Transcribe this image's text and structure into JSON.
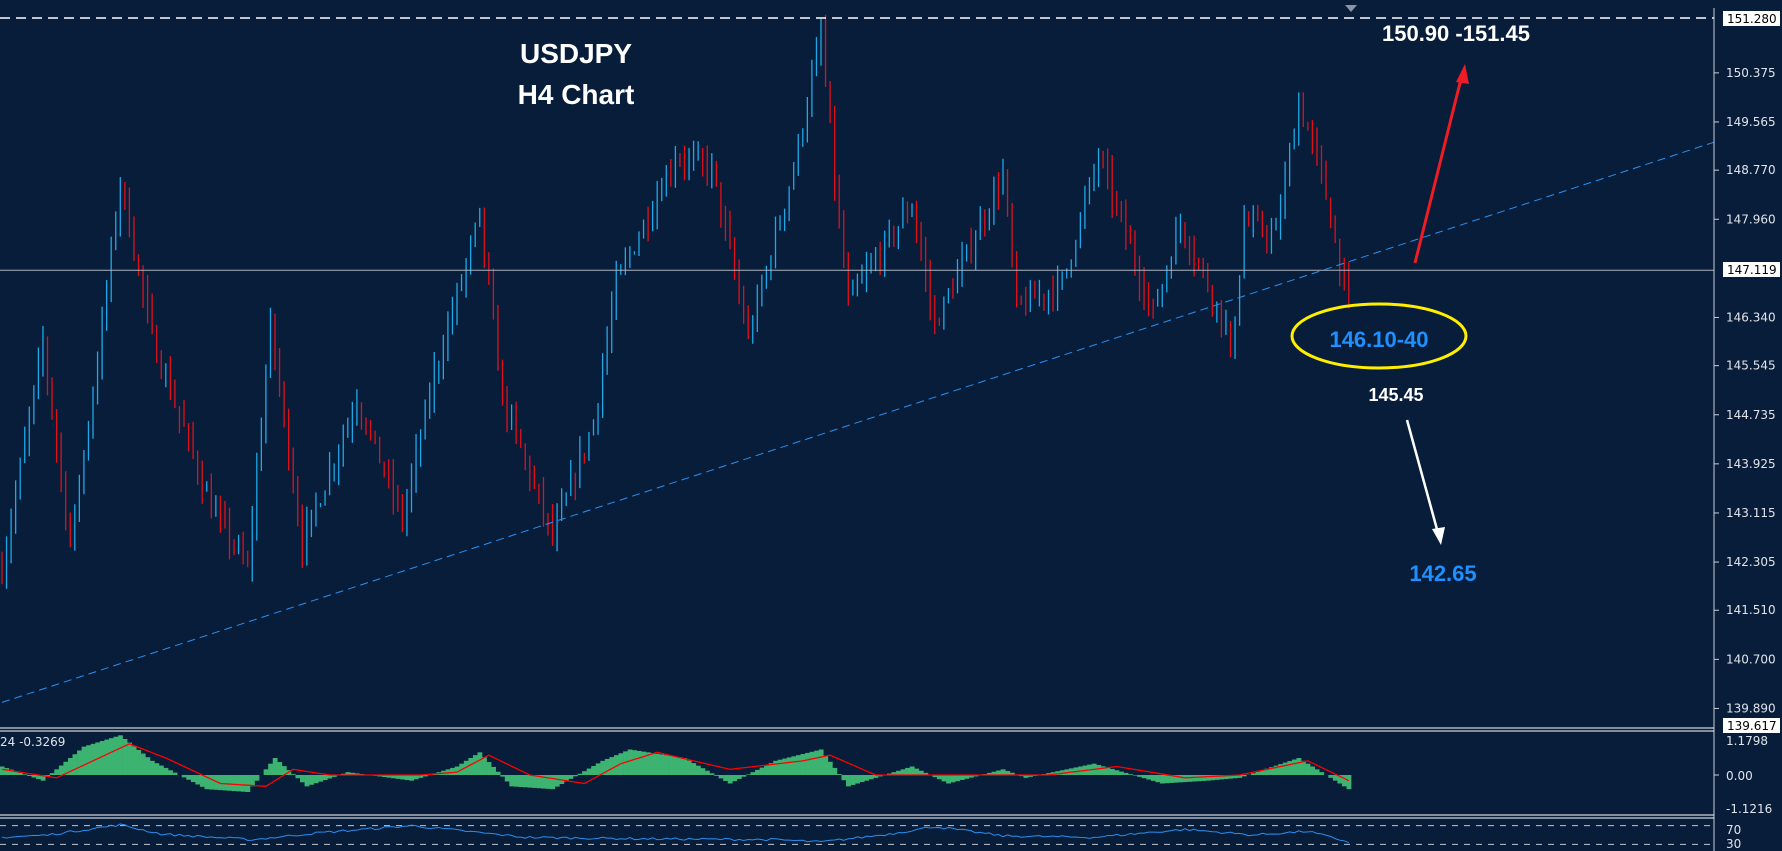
{
  "chart_data": {
    "type": "ohlc",
    "title": "USDJPY",
    "subtitle": "H4 Chart",
    "ylim": [
      139.617,
      151.28
    ],
    "y_ticks": [
      "150.375",
      "149.565",
      "148.770",
      "147.960",
      "146.340",
      "145.545",
      "144.735",
      "143.925",
      "143.115",
      "142.305",
      "141.510",
      "140.700",
      "139.890"
    ],
    "price_labels": {
      "top": "151.280",
      "current": "147.119",
      "bottom": "139.617"
    },
    "current_price": 147.119,
    "top_line_price": 151.28,
    "up_color": "#1ea8e8",
    "down_color": "#e0101a",
    "price_path": [
      [
        0,
        142.2
      ],
      [
        9,
        145.9
      ],
      [
        15,
        142.6
      ],
      [
        21,
        145.6
      ],
      [
        26,
        148.6
      ],
      [
        33,
        146.0
      ],
      [
        46,
        143.2
      ],
      [
        54,
        142.2
      ],
      [
        59,
        146.2
      ],
      [
        66,
        142.6
      ],
      [
        78,
        145.0
      ],
      [
        88,
        143.0
      ],
      [
        95,
        145.4
      ],
      [
        105,
        148.0
      ],
      [
        110,
        145.0
      ],
      [
        121,
        142.7
      ],
      [
        130,
        144.6
      ],
      [
        135,
        146.9
      ],
      [
        148,
        149.0
      ],
      [
        156,
        148.8
      ],
      [
        164,
        146.0
      ],
      [
        174,
        148.8
      ],
      [
        180,
        151.0
      ],
      [
        184,
        147.8
      ],
      [
        186,
        146.6
      ],
      [
        200,
        148.2
      ],
      [
        205,
        146.2
      ],
      [
        220,
        148.7
      ],
      [
        223,
        146.5
      ],
      [
        233,
        146.9
      ],
      [
        241,
        149.0
      ],
      [
        253,
        146.4
      ],
      [
        259,
        147.9
      ],
      [
        269,
        146.2
      ],
      [
        270,
        145.6
      ],
      [
        273,
        147.9
      ],
      [
        280,
        147.7
      ],
      [
        285,
        149.9
      ],
      [
        290,
        148.7
      ],
      [
        296,
        146.5
      ]
    ],
    "trendline": {
      "style": "dashed",
      "color": "#2a8ff0",
      "from": [
        0,
        139.99
      ],
      "to": [
        296,
        147.26
      ]
    },
    "annotations": [
      {
        "text": "150.90 -151.45",
        "color": "#ffffff"
      },
      {
        "text": "146.10-40",
        "color": "#1e90ff"
      },
      {
        "text": "145.45",
        "color": "#ffffff"
      },
      {
        "text": "142.65",
        "color": "#1e90ff"
      }
    ],
    "ellipse_color": "#ffee00",
    "up_arrow_color": "#ee1c24",
    "down_arrow_color": "#ffffff",
    "macd": {
      "label": "24 -0.3269",
      "y_ticks": [
        "1.1798",
        "0.00",
        "-1.1216"
      ],
      "ylim": [
        -1.5,
        1.5
      ],
      "histogram_color": "#3cb371",
      "signal_color": "#ff0000",
      "histogram_path": [
        [
          0,
          0.3
        ],
        [
          9,
          -0.2
        ],
        [
          18,
          1.0
        ],
        [
          26,
          1.4
        ],
        [
          33,
          0.5
        ],
        [
          45,
          -0.5
        ],
        [
          54,
          -0.6
        ],
        [
          60,
          0.6
        ],
        [
          67,
          -0.4
        ],
        [
          76,
          0.1
        ],
        [
          90,
          -0.2
        ],
        [
          100,
          0.3
        ],
        [
          105,
          0.8
        ],
        [
          112,
          -0.4
        ],
        [
          121,
          -0.5
        ],
        [
          132,
          0.5
        ],
        [
          138,
          0.9
        ],
        [
          150,
          0.6
        ],
        [
          160,
          -0.3
        ],
        [
          170,
          0.5
        ],
        [
          180,
          0.9
        ],
        [
          186,
          -0.4
        ],
        [
          200,
          0.3
        ],
        [
          208,
          -0.3
        ],
        [
          220,
          0.2
        ],
        [
          225,
          -0.1
        ],
        [
          240,
          0.4
        ],
        [
          255,
          -0.3
        ],
        [
          265,
          -0.2
        ],
        [
          272,
          -0.1
        ],
        [
          285,
          0.6
        ],
        [
          296,
          -0.5
        ]
      ],
      "signal_path": [
        [
          0,
          0.2
        ],
        [
          12,
          -0.1
        ],
        [
          20,
          0.5
        ],
        [
          28,
          1.1
        ],
        [
          36,
          0.6
        ],
        [
          48,
          -0.3
        ],
        [
          58,
          -0.4
        ],
        [
          64,
          0.2
        ],
        [
          72,
          0.0
        ],
        [
          92,
          0.0
        ],
        [
          100,
          0.1
        ],
        [
          107,
          0.7
        ],
        [
          116,
          0.0
        ],
        [
          128,
          -0.3
        ],
        [
          136,
          0.4
        ],
        [
          144,
          0.8
        ],
        [
          160,
          0.2
        ],
        [
          176,
          0.5
        ],
        [
          182,
          0.7
        ],
        [
          192,
          0.0
        ],
        [
          215,
          0.0
        ],
        [
          230,
          0.0
        ],
        [
          245,
          0.3
        ],
        [
          260,
          -0.1
        ],
        [
          272,
          0.0
        ],
        [
          287,
          0.5
        ],
        [
          296,
          -0.2
        ]
      ]
    },
    "rsi": {
      "levels": [
        "70",
        "30"
      ],
      "color": "#2a8ff0",
      "path": [
        [
          0,
          45
        ],
        [
          10,
          50
        ],
        [
          26,
          72
        ],
        [
          35,
          52
        ],
        [
          55,
          40
        ],
        [
          70,
          55
        ],
        [
          90,
          70
        ],
        [
          100,
          60
        ],
        [
          115,
          45
        ],
        [
          140,
          42
        ],
        [
          170,
          40
        ],
        [
          180,
          35
        ],
        [
          195,
          52
        ],
        [
          205,
          68
        ],
        [
          220,
          48
        ],
        [
          240,
          45
        ],
        [
          260,
          62
        ],
        [
          275,
          50
        ],
        [
          287,
          58
        ],
        [
          296,
          35
        ]
      ]
    }
  }
}
